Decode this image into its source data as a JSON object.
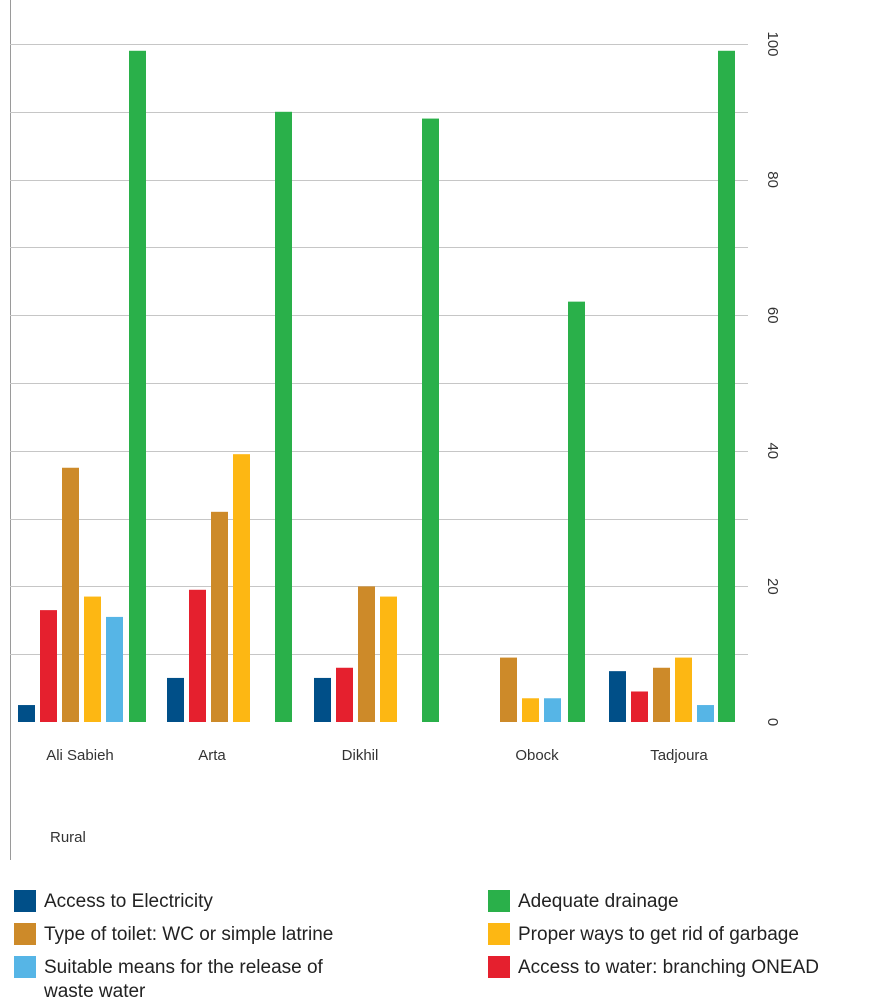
{
  "chart_data": {
    "type": "bar",
    "categories": [
      "Ali Sabieh",
      "Arta",
      "Dikhil",
      "Obock",
      "Tadjoura"
    ],
    "group_label": "Rural",
    "ylim": [
      0,
      100
    ],
    "y_ticks": [
      0,
      20,
      40,
      60,
      80,
      100
    ],
    "grid": true,
    "y_axis_position": "right",
    "legend_position": "bottom",
    "title": "",
    "xlabel": "",
    "ylabel": "",
    "series": [
      {
        "name": "Access to Electricity",
        "color": "#004f88",
        "values": [
          2.5,
          6.5,
          6.5,
          null,
          7.5
        ]
      },
      {
        "name": "Access to water: branching ONEAD",
        "color": "#e5202e",
        "values": [
          16.5,
          19.5,
          8.0,
          null,
          4.5
        ]
      },
      {
        "name": "Type of toilet: WC or simple latrine",
        "color": "#cd8a29",
        "values": [
          37.5,
          31.0,
          20.0,
          9.5,
          8.0
        ]
      },
      {
        "name": "Proper ways to get rid of garbage",
        "color": "#fdb713",
        "values": [
          18.5,
          39.5,
          18.5,
          3.5,
          9.5
        ]
      },
      {
        "name": "Suitable means for the release of waste water",
        "color": "#56b5e6",
        "values": [
          15.5,
          null,
          null,
          3.5,
          2.5
        ]
      },
      {
        "name": "Adequate drainage",
        "color": "#2ab04a",
        "values": [
          99.0,
          90.0,
          89.0,
          62.0,
          99.0
        ]
      }
    ]
  },
  "legend": {
    "items": [
      {
        "label": "Access to Electricity",
        "color": "#004f88"
      },
      {
        "label": "Type of toilet: WC or simple latrine",
        "color": "#cd8a29"
      },
      {
        "label": "Suitable means for the release of waste water",
        "color": "#56b5e6"
      },
      {
        "label": "Adequate drainage",
        "color": "#2ab04a"
      },
      {
        "label": "Proper ways to get rid of garbage",
        "color": "#fdb713"
      },
      {
        "label": "Access to water: branching ONEAD",
        "color": "#e5202e"
      }
    ]
  }
}
